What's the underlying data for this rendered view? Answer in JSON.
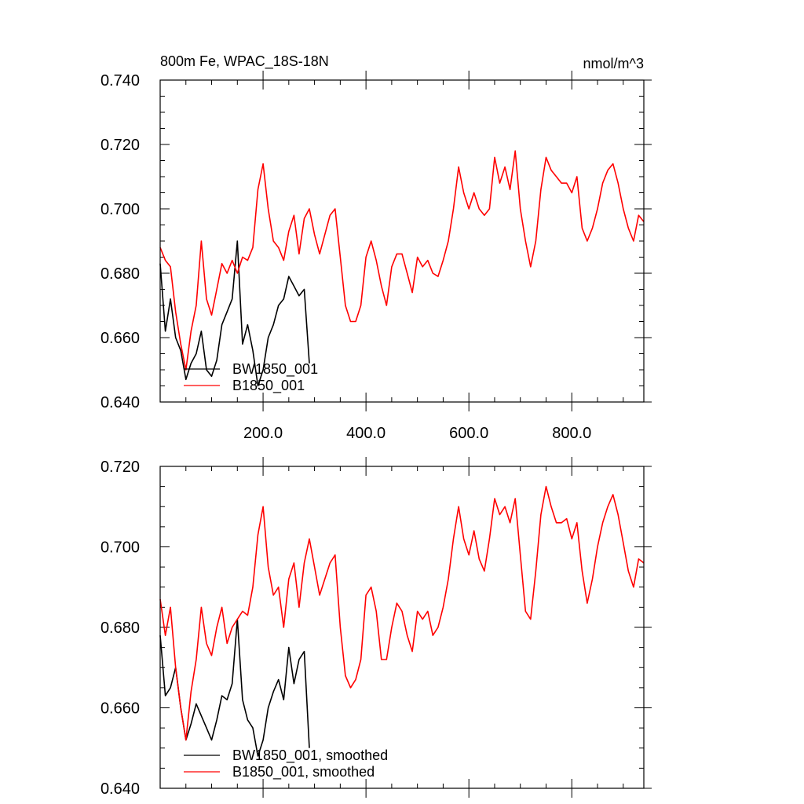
{
  "chart_data": [
    {
      "type": "line",
      "title": "800m Fe, WPAC_18S-18N",
      "units": "nmol/m^3",
      "xlim": [
        0,
        940
      ],
      "ylim": [
        0.64,
        0.74
      ],
      "xticks": [
        "200.0",
        "400.0",
        "600.0",
        "800.0"
      ],
      "xtick_values": [
        200,
        400,
        600,
        800
      ],
      "yticks": [
        "0.640",
        "0.660",
        "0.680",
        "0.700",
        "0.720",
        "0.740"
      ],
      "ytick_values": [
        0.64,
        0.66,
        0.68,
        0.7,
        0.72,
        0.74
      ],
      "legend_position": "lower-left",
      "series": [
        {
          "name": "BW1850_001",
          "color": "#000000",
          "x": [
            0,
            10,
            20,
            30,
            40,
            50,
            60,
            70,
            80,
            90,
            100,
            110,
            120,
            130,
            140,
            150,
            160,
            170,
            180,
            190,
            200,
            210,
            220,
            230,
            240,
            250,
            260,
            270,
            280,
            290
          ],
          "y": [
            0.683,
            0.662,
            0.672,
            0.66,
            0.656,
            0.647,
            0.652,
            0.655,
            0.662,
            0.65,
            0.648,
            0.653,
            0.664,
            0.668,
            0.672,
            0.69,
            0.658,
            0.664,
            0.656,
            0.645,
            0.65,
            0.66,
            0.664,
            0.67,
            0.672,
            0.679,
            0.676,
            0.673,
            0.675,
            0.652
          ]
        },
        {
          "name": "B1850_001",
          "color": "#ff0000",
          "x": [
            0,
            10,
            20,
            30,
            40,
            50,
            60,
            70,
            80,
            90,
            100,
            110,
            120,
            130,
            140,
            150,
            160,
            170,
            180,
            190,
            200,
            210,
            220,
            230,
            240,
            250,
            260,
            270,
            280,
            290,
            300,
            310,
            320,
            330,
            340,
            350,
            360,
            370,
            380,
            390,
            400,
            410,
            420,
            430,
            440,
            450,
            460,
            470,
            480,
            490,
            500,
            510,
            520,
            530,
            540,
            550,
            560,
            570,
            580,
            590,
            600,
            610,
            620,
            630,
            640,
            650,
            660,
            670,
            680,
            690,
            700,
            710,
            720,
            730,
            740,
            750,
            760,
            770,
            780,
            790,
            800,
            810,
            820,
            830,
            840,
            850,
            860,
            870,
            880,
            890,
            900,
            910,
            920,
            930,
            940
          ],
          "y": [
            0.688,
            0.684,
            0.682,
            0.668,
            0.658,
            0.65,
            0.662,
            0.67,
            0.69,
            0.672,
            0.667,
            0.675,
            0.683,
            0.68,
            0.684,
            0.68,
            0.685,
            0.684,
            0.688,
            0.706,
            0.714,
            0.7,
            0.69,
            0.688,
            0.684,
            0.693,
            0.698,
            0.686,
            0.697,
            0.7,
            0.692,
            0.686,
            0.692,
            0.698,
            0.7,
            0.685,
            0.67,
            0.665,
            0.665,
            0.67,
            0.685,
            0.69,
            0.684,
            0.676,
            0.67,
            0.682,
            0.686,
            0.686,
            0.68,
            0.674,
            0.685,
            0.682,
            0.684,
            0.68,
            0.679,
            0.684,
            0.69,
            0.7,
            0.713,
            0.705,
            0.7,
            0.705,
            0.7,
            0.698,
            0.7,
            0.716,
            0.708,
            0.713,
            0.706,
            0.718,
            0.7,
            0.69,
            0.682,
            0.69,
            0.706,
            0.716,
            0.712,
            0.71,
            0.708,
            0.708,
            0.705,
            0.71,
            0.694,
            0.69,
            0.694,
            0.7,
            0.708,
            0.712,
            0.714,
            0.708,
            0.7,
            0.694,
            0.69,
            0.698,
            0.696
          ]
        }
      ]
    },
    {
      "type": "line",
      "title": "",
      "xlim": [
        0,
        940
      ],
      "ylim": [
        0.64,
        0.72
      ],
      "yticks": [
        "0.640",
        "0.660",
        "0.680",
        "0.700",
        "0.720"
      ],
      "ytick_values": [
        0.64,
        0.66,
        0.68,
        0.7,
        0.72
      ],
      "legend_position": "lower-left",
      "series": [
        {
          "name": "BW1850_001, smoothed",
          "color": "#000000",
          "x": [
            0,
            10,
            20,
            30,
            40,
            50,
            60,
            70,
            80,
            90,
            100,
            110,
            120,
            130,
            140,
            150,
            160,
            170,
            180,
            190,
            200,
            210,
            220,
            230,
            240,
            250,
            260,
            270,
            280,
            290
          ],
          "y": [
            0.678,
            0.663,
            0.665,
            0.67,
            0.66,
            0.652,
            0.656,
            0.661,
            0.658,
            0.655,
            0.652,
            0.657,
            0.663,
            0.662,
            0.666,
            0.682,
            0.662,
            0.657,
            0.655,
            0.648,
            0.652,
            0.66,
            0.664,
            0.667,
            0.662,
            0.675,
            0.666,
            0.672,
            0.674,
            0.65
          ]
        },
        {
          "name": "B1850_001, smoothed",
          "color": "#ff0000",
          "x": [
            0,
            10,
            20,
            30,
            40,
            50,
            60,
            70,
            80,
            90,
            100,
            110,
            120,
            130,
            140,
            150,
            160,
            170,
            180,
            190,
            200,
            210,
            220,
            230,
            240,
            250,
            260,
            270,
            280,
            290,
            300,
            310,
            320,
            330,
            340,
            350,
            360,
            370,
            380,
            390,
            400,
            410,
            420,
            430,
            440,
            450,
            460,
            470,
            480,
            490,
            500,
            510,
            520,
            530,
            540,
            550,
            560,
            570,
            580,
            590,
            600,
            610,
            620,
            630,
            640,
            650,
            660,
            670,
            680,
            690,
            700,
            710,
            720,
            730,
            740,
            750,
            760,
            770,
            780,
            790,
            800,
            810,
            820,
            830,
            840,
            850,
            860,
            870,
            880,
            890,
            900,
            910,
            920,
            930,
            940
          ],
          "y": [
            0.687,
            0.678,
            0.685,
            0.67,
            0.66,
            0.652,
            0.664,
            0.672,
            0.685,
            0.676,
            0.673,
            0.68,
            0.685,
            0.676,
            0.68,
            0.682,
            0.684,
            0.683,
            0.69,
            0.703,
            0.71,
            0.695,
            0.688,
            0.69,
            0.68,
            0.692,
            0.696,
            0.685,
            0.696,
            0.702,
            0.695,
            0.688,
            0.692,
            0.696,
            0.698,
            0.68,
            0.668,
            0.665,
            0.667,
            0.672,
            0.688,
            0.69,
            0.684,
            0.672,
            0.672,
            0.68,
            0.686,
            0.684,
            0.678,
            0.674,
            0.684,
            0.682,
            0.684,
            0.678,
            0.68,
            0.685,
            0.692,
            0.702,
            0.71,
            0.702,
            0.698,
            0.704,
            0.697,
            0.694,
            0.702,
            0.712,
            0.708,
            0.71,
            0.706,
            0.712,
            0.698,
            0.684,
            0.682,
            0.694,
            0.708,
            0.715,
            0.71,
            0.706,
            0.706,
            0.707,
            0.702,
            0.706,
            0.694,
            0.686,
            0.692,
            0.7,
            0.706,
            0.71,
            0.713,
            0.708,
            0.701,
            0.694,
            0.69,
            0.697,
            0.696
          ]
        }
      ]
    }
  ]
}
